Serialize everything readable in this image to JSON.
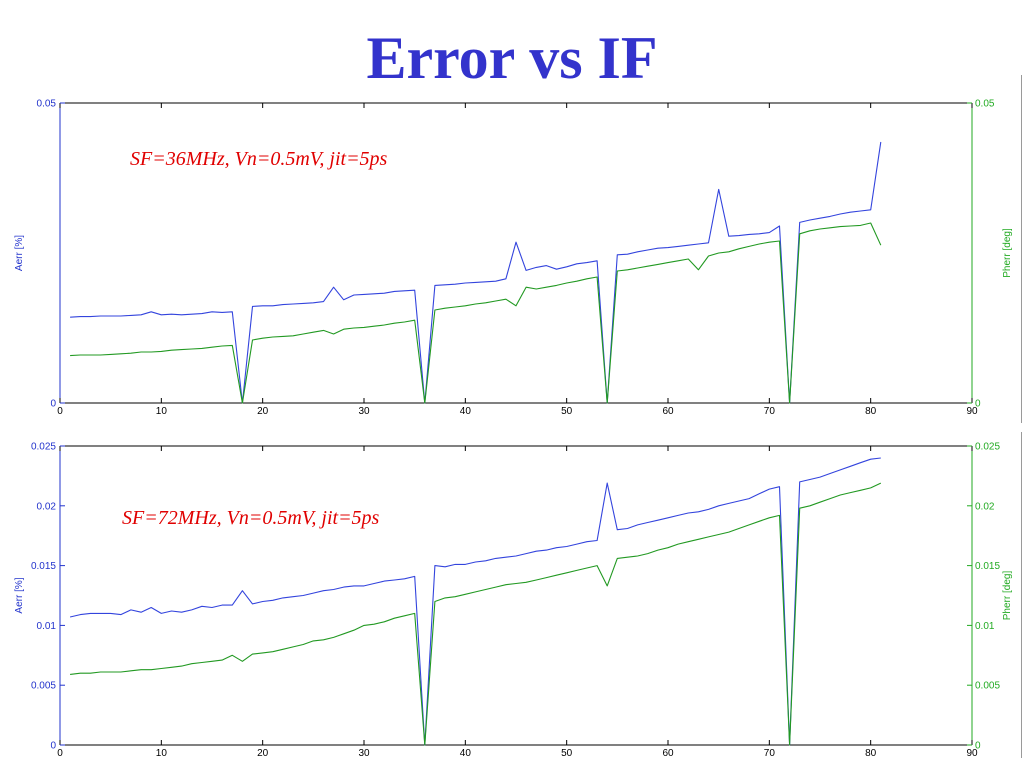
{
  "slide": {
    "title": "Error vs IF"
  },
  "colors": {
    "left_axis": "#2233cc",
    "right_axis": "#22aa22",
    "series_a": "#3344dd",
    "series_p": "#229922",
    "annotation": "#e00000"
  },
  "chart_data": [
    {
      "type": "line",
      "annotation": "SF=36MHz, Vn=0.5mV, jit=5ps",
      "xlim": [
        0,
        90
      ],
      "xticks": [
        "0",
        "10",
        "20",
        "30",
        "40",
        "50",
        "60",
        "70",
        "80",
        "90"
      ],
      "ylabel_left": "Aerr [%]",
      "ylabel_right": "Pherr [deg]",
      "ylim_left": [
        0,
        0.05
      ],
      "ylim_right": [
        0,
        0.05
      ],
      "yticks_left": [
        "0",
        "0.05"
      ],
      "yticks_right": [
        "0",
        "0.05"
      ],
      "x": [
        1,
        2,
        3,
        4,
        5,
        6,
        7,
        8,
        9,
        10,
        11,
        12,
        13,
        14,
        15,
        16,
        17,
        18,
        19,
        20,
        21,
        22,
        23,
        24,
        25,
        26,
        27,
        28,
        29,
        30,
        31,
        32,
        33,
        34,
        35,
        36,
        37,
        38,
        39,
        40,
        41,
        42,
        43,
        44,
        45,
        46,
        47,
        48,
        49,
        50,
        51,
        52,
        53,
        54,
        55,
        56,
        57,
        58,
        59,
        60,
        61,
        62,
        63,
        64,
        65,
        66,
        67,
        68,
        69,
        70,
        71,
        72,
        73,
        74,
        75,
        76,
        77,
        78,
        79,
        80,
        81
      ],
      "series": [
        {
          "name": "Aerr [%]",
          "axis": "left",
          "values": [
            0.0143,
            0.0144,
            0.0144,
            0.0145,
            0.0145,
            0.0145,
            0.0146,
            0.0147,
            0.0152,
            0.0147,
            0.0148,
            0.0147,
            0.0148,
            0.0149,
            0.0152,
            0.0151,
            0.0152,
            0.0,
            0.0161,
            0.0162,
            0.0162,
            0.0164,
            0.0165,
            0.0166,
            0.0167,
            0.0169,
            0.0193,
            0.0172,
            0.018,
            0.0181,
            0.0182,
            0.0183,
            0.0186,
            0.0187,
            0.0188,
            0.0,
            0.0196,
            0.0197,
            0.0198,
            0.02,
            0.0201,
            0.0202,
            0.0203,
            0.0207,
            0.0268,
            0.0221,
            0.0226,
            0.0229,
            0.0223,
            0.0227,
            0.0232,
            0.0234,
            0.0237,
            0.0,
            0.0247,
            0.0248,
            0.0252,
            0.0255,
            0.0258,
            0.0259,
            0.0261,
            0.0263,
            0.0265,
            0.0267,
            0.0356,
            0.0278,
            0.0279,
            0.0281,
            0.0282,
            0.0284,
            0.0295,
            0.0,
            0.0301,
            0.0305,
            0.0308,
            0.0311,
            0.0315,
            0.0318,
            0.032,
            0.0322,
            0.0435
          ]
        },
        {
          "name": "Pherr [deg]",
          "axis": "right",
          "values": [
            0.0079,
            0.008,
            0.008,
            0.008,
            0.0081,
            0.0082,
            0.0083,
            0.0085,
            0.0085,
            0.0086,
            0.0088,
            0.0089,
            0.009,
            0.0091,
            0.0093,
            0.0095,
            0.0096,
            0.0,
            0.0105,
            0.0108,
            0.011,
            0.0111,
            0.0112,
            0.0115,
            0.0118,
            0.0121,
            0.0115,
            0.0123,
            0.0125,
            0.0126,
            0.0128,
            0.013,
            0.0133,
            0.0135,
            0.0138,
            0.0,
            0.0155,
            0.0158,
            0.016,
            0.0162,
            0.0165,
            0.0167,
            0.017,
            0.0173,
            0.0162,
            0.0193,
            0.019,
            0.0193,
            0.0196,
            0.02,
            0.0203,
            0.0207,
            0.021,
            0.0,
            0.022,
            0.0222,
            0.0225,
            0.0228,
            0.0231,
            0.0234,
            0.0237,
            0.024,
            0.0222,
            0.0245,
            0.025,
            0.0252,
            0.0257,
            0.0261,
            0.0265,
            0.0268,
            0.027,
            0.0,
            0.0282,
            0.0287,
            0.029,
            0.0292,
            0.0294,
            0.0295,
            0.0296,
            0.03,
            0.0263
          ]
        }
      ]
    },
    {
      "type": "line",
      "annotation": "SF=72MHz, Vn=0.5mV, jit=5ps",
      "xlim": [
        0,
        90
      ],
      "xticks": [
        "0",
        "10",
        "20",
        "30",
        "40",
        "50",
        "60",
        "70",
        "80",
        "90"
      ],
      "ylabel_left": "Aerr [%]",
      "ylabel_right": "Pherr [deg]",
      "ylim_left": [
        0,
        0.025
      ],
      "ylim_right": [
        0,
        0.025
      ],
      "yticks_left": [
        "0",
        "0.005",
        "0.01",
        "0.015",
        "0.02",
        "0.025"
      ],
      "yticks_right": [
        "0",
        "0.005",
        "0.01",
        "0.015",
        "0.02",
        "0.025"
      ],
      "x": [
        1,
        2,
        3,
        4,
        5,
        6,
        7,
        8,
        9,
        10,
        11,
        12,
        13,
        14,
        15,
        16,
        17,
        18,
        19,
        20,
        21,
        22,
        23,
        24,
        25,
        26,
        27,
        28,
        29,
        30,
        31,
        32,
        33,
        34,
        35,
        36,
        37,
        38,
        39,
        40,
        41,
        42,
        43,
        44,
        45,
        46,
        47,
        48,
        49,
        50,
        51,
        52,
        53,
        54,
        55,
        56,
        57,
        58,
        59,
        60,
        61,
        62,
        63,
        64,
        65,
        66,
        67,
        68,
        69,
        70,
        71,
        72,
        73,
        74,
        75,
        76,
        77,
        78,
        79,
        80,
        81
      ],
      "series": [
        {
          "name": "Aerr [%]",
          "axis": "left",
          "values": [
            0.0107,
            0.0109,
            0.011,
            0.011,
            0.011,
            0.0109,
            0.0113,
            0.0111,
            0.0115,
            0.011,
            0.0112,
            0.0111,
            0.0113,
            0.0116,
            0.0115,
            0.0117,
            0.0117,
            0.0129,
            0.0118,
            0.012,
            0.0121,
            0.0123,
            0.0124,
            0.0125,
            0.0127,
            0.0129,
            0.013,
            0.0132,
            0.0133,
            0.0133,
            0.0135,
            0.0137,
            0.0138,
            0.0139,
            0.0141,
            0.0,
            0.015,
            0.0149,
            0.0151,
            0.0151,
            0.0153,
            0.0154,
            0.0156,
            0.0157,
            0.0158,
            0.016,
            0.0162,
            0.0163,
            0.0165,
            0.0166,
            0.0168,
            0.017,
            0.0171,
            0.0219,
            0.018,
            0.0181,
            0.0184,
            0.0186,
            0.0188,
            0.019,
            0.0192,
            0.0194,
            0.0195,
            0.0197,
            0.02,
            0.0202,
            0.0204,
            0.0206,
            0.021,
            0.0214,
            0.0216,
            0.0,
            0.022,
            0.0222,
            0.0224,
            0.0227,
            0.023,
            0.0233,
            0.0236,
            0.0239,
            0.024
          ]
        },
        {
          "name": "Pherr [deg]",
          "axis": "right",
          "values": [
            0.0059,
            0.006,
            0.006,
            0.0061,
            0.0061,
            0.0061,
            0.0062,
            0.0063,
            0.0063,
            0.0064,
            0.0065,
            0.0066,
            0.0068,
            0.0069,
            0.007,
            0.0071,
            0.0075,
            0.007,
            0.0076,
            0.0077,
            0.0078,
            0.008,
            0.0082,
            0.0084,
            0.0087,
            0.0088,
            0.009,
            0.0093,
            0.0096,
            0.01,
            0.0101,
            0.0103,
            0.0106,
            0.0108,
            0.011,
            0.0,
            0.012,
            0.0123,
            0.0124,
            0.0126,
            0.0128,
            0.013,
            0.0132,
            0.0134,
            0.0135,
            0.0136,
            0.0138,
            0.014,
            0.0142,
            0.0144,
            0.0146,
            0.0148,
            0.015,
            0.0133,
            0.0156,
            0.0157,
            0.0158,
            0.016,
            0.0163,
            0.0165,
            0.0168,
            0.017,
            0.0172,
            0.0174,
            0.0176,
            0.0178,
            0.0181,
            0.0184,
            0.0187,
            0.019,
            0.0192,
            0.0,
            0.0198,
            0.02,
            0.0203,
            0.0206,
            0.0209,
            0.0211,
            0.0213,
            0.0215,
            0.0219
          ]
        }
      ]
    }
  ]
}
